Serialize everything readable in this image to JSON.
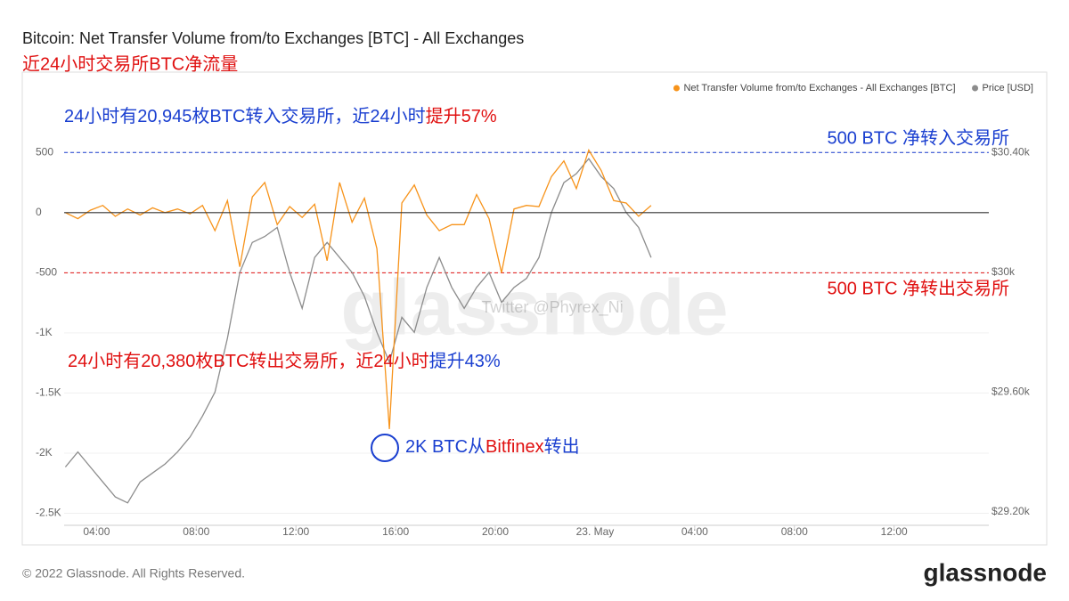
{
  "chart_data": {
    "type": "line",
    "title": "Bitcoin: Net Transfer Volume from/to Exchanges [BTC] - All Exchanges",
    "subtitle": "近24小时交易所BTC净流量",
    "watermark": "glassnode",
    "credit": "Twitter @Phyrex_Ni",
    "x": [
      2.75,
      3.25,
      3.75,
      4.25,
      4.75,
      5.25,
      5.75,
      6.25,
      6.75,
      7.25,
      7.75,
      8.25,
      8.75,
      9.25,
      9.75,
      10.25,
      10.75,
      11.25,
      11.75,
      12.25,
      12.75,
      13.25,
      13.75,
      14.25,
      14.75,
      15.25,
      15.75,
      16.25,
      16.75,
      17.25,
      17.75,
      18.25,
      18.75,
      19.25,
      19.75,
      20.25,
      20.75,
      21.25,
      21.75,
      22.25,
      22.75,
      23.25,
      23.75,
      24.25,
      24.75,
      25.25,
      25.75,
      26.25
    ],
    "xlim": [
      2.7,
      39.8
    ],
    "xticks": [
      {
        "value": 4,
        "label": "04:00"
      },
      {
        "value": 8,
        "label": "08:00"
      },
      {
        "value": 12,
        "label": "12:00"
      },
      {
        "value": 16,
        "label": "16:00"
      },
      {
        "value": 20,
        "label": "20:00"
      },
      {
        "value": 24,
        "label": "23. May"
      },
      {
        "value": 28,
        "label": "04:00"
      },
      {
        "value": 32,
        "label": "08:00"
      },
      {
        "value": 36,
        "label": "12:00"
      }
    ],
    "ylim": [
      -2600,
      650
    ],
    "yticks": [
      500,
      0,
      -500,
      {
        "value": -1000,
        "label": "-1K"
      },
      {
        "value": -1500,
        "label": "-1.5K"
      },
      {
        "value": -2000,
        "label": "-2K"
      },
      {
        "value": -2500,
        "label": "-2.5K"
      }
    ],
    "y2lim": [
      29155,
      30461
    ],
    "y2ticks": [
      {
        "value": 30400,
        "label": "$30.40k"
      },
      {
        "value": 30000,
        "label": "$30k"
      },
      {
        "value": 29600,
        "label": "$29.60k"
      },
      {
        "value": 29200,
        "label": "$29.20k"
      }
    ],
    "grid": true,
    "legend": "top-right",
    "series": [
      {
        "name": "Net Transfer Volume from/to Exchanges - All Exchanges [BTC]",
        "color": "#f7931a",
        "values": [
          0,
          -50,
          20,
          60,
          -30,
          30,
          -20,
          40,
          0,
          30,
          -10,
          60,
          -150,
          100,
          -450,
          130,
          250,
          -100,
          50,
          -40,
          70,
          -400,
          250,
          -80,
          120,
          -300,
          -1800,
          80,
          230,
          -20,
          -150,
          -100,
          -100,
          150,
          -50,
          -500,
          30,
          60,
          50,
          300,
          430,
          200,
          520,
          350,
          100,
          80,
          -30,
          60
        ]
      },
      {
        "name": "Price [USD]",
        "color": "#8c8c8c",
        "axis": "y2",
        "values": [
          29350,
          29400,
          29350,
          29300,
          29250,
          29230,
          29300,
          29330,
          29360,
          29400,
          29450,
          29520,
          29600,
          29780,
          30000,
          30100,
          30120,
          30150,
          30000,
          29880,
          30050,
          30100,
          30050,
          30000,
          29920,
          29800,
          29700,
          29850,
          29800,
          29950,
          30050,
          29950,
          29880,
          29950,
          30000,
          29900,
          29950,
          29980,
          30050,
          30200,
          30300,
          30330,
          30380,
          30320,
          30280,
          30200,
          30150,
          30050
        ]
      }
    ],
    "reference_lines": [
      {
        "value": 500,
        "label": "500 BTC 净转入交易所",
        "color": "#1a3fd0"
      },
      {
        "value": -500,
        "label": "500 BTC 净转出交易所",
        "color": "#e01010"
      }
    ],
    "annotations": [
      {
        "parts": [
          {
            "text": "24小时有20,945枚BTC转入交易所，近24小时",
            "color": "#1a3fd0"
          },
          {
            "text": "提升57%",
            "color": "#e01010"
          }
        ]
      },
      {
        "parts": [
          {
            "text": "24小时有20,380枚BTC转出交易所，近24小时",
            "color": "#e01010"
          },
          {
            "text": "提升43%",
            "color": "#1a3fd0"
          }
        ]
      },
      {
        "parts": [
          {
            "text": "2K BTC从",
            "color": "#1a3fd0"
          },
          {
            "text": "Bitfinex",
            "color": "#e01010"
          },
          {
            "text": "转出",
            "color": "#1a3fd0"
          }
        ]
      }
    ]
  },
  "footer": {
    "copyright": "© 2022 Glassnode. All Rights Reserved.",
    "logo": "glassnode"
  }
}
